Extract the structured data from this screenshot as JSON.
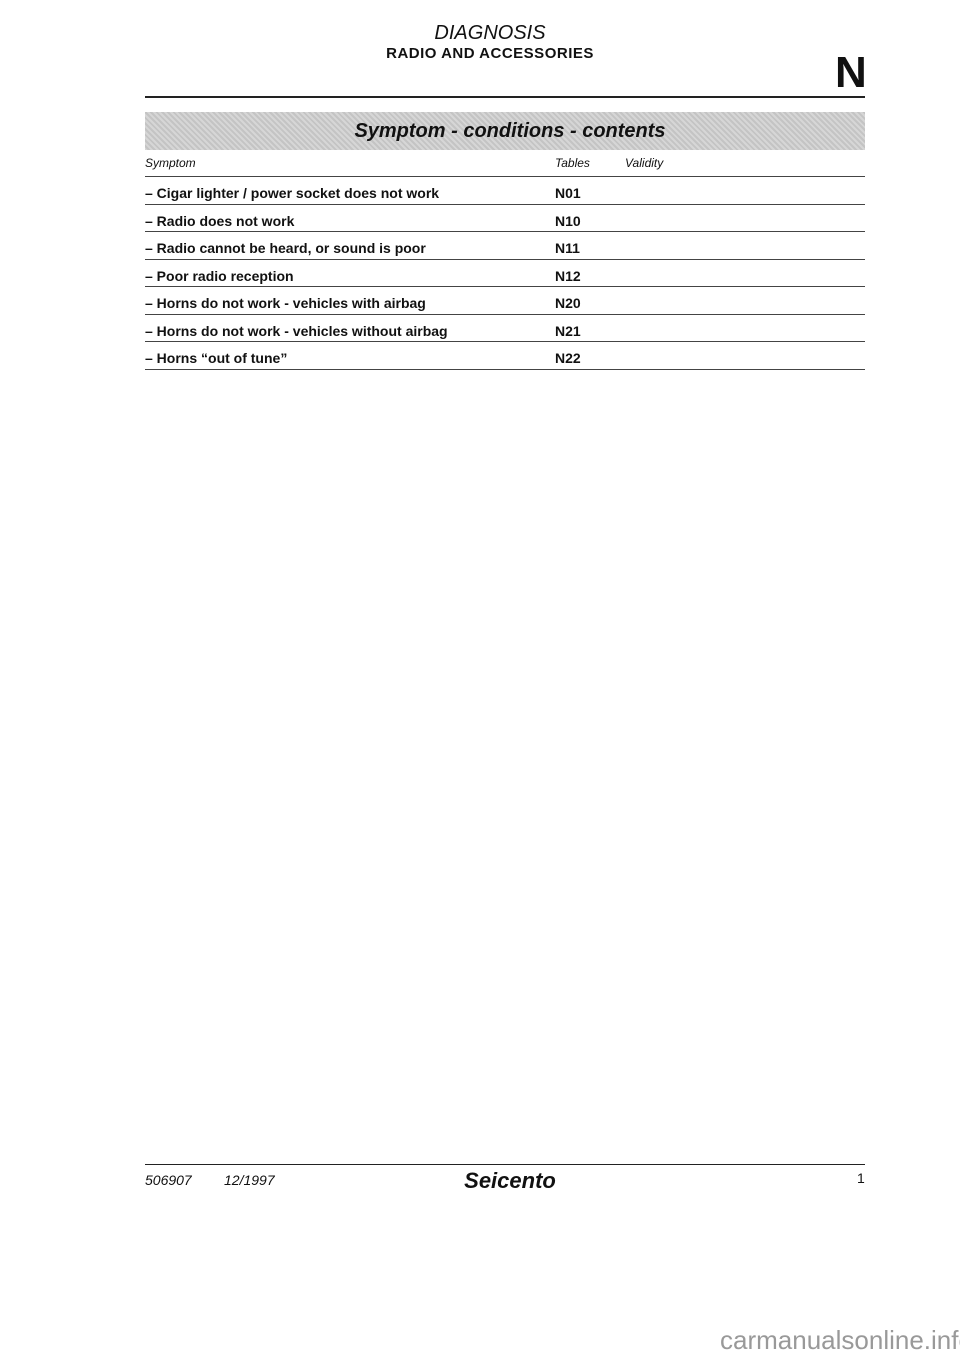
{
  "header": {
    "title": "DIAGNOSIS",
    "subtitle": "RADIO AND ACCESSORIES",
    "section_letter": "N"
  },
  "banner": "Symptom - conditions - contents",
  "table": {
    "columns": [
      "Symptom",
      "Tables",
      "Validity"
    ],
    "rows": [
      {
        "symptom": "– Cigar lighter / power socket does not work",
        "table": "N01"
      },
      {
        "symptom": "– Radio does not work",
        "table": "N10"
      },
      {
        "symptom": "– Radio cannot be heard, or sound is poor",
        "table": "N11"
      },
      {
        "symptom": "– Poor radio reception",
        "table": "N12"
      },
      {
        "symptom": "– Horns do not work - vehicles with airbag",
        "table": "N20"
      },
      {
        "symptom": "– Horns do not work - vehicles without airbag",
        "table": "N21"
      },
      {
        "symptom": "– Horns “out of tune”",
        "table": "N22"
      }
    ]
  },
  "footer": {
    "code": "506907",
    "date": "12/1997",
    "model": "Seicento",
    "page": "1"
  },
  "watermark": "carmanualsonline.info"
}
